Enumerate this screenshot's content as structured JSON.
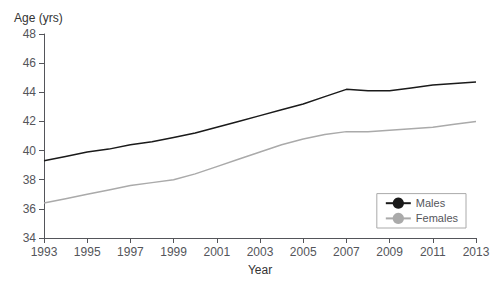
{
  "chart_data": {
    "type": "line",
    "x": [
      1993,
      1994,
      1995,
      1996,
      1997,
      1998,
      1999,
      2000,
      2001,
      2002,
      2003,
      2004,
      2005,
      2006,
      2007,
      2008,
      2009,
      2010,
      2011,
      2012,
      2013
    ],
    "series": [
      {
        "name": "Males",
        "color": "#1a1a1a",
        "values": [
          39.3,
          39.6,
          39.9,
          40.1,
          40.4,
          40.6,
          40.9,
          41.2,
          41.6,
          42.0,
          42.4,
          42.8,
          43.2,
          43.7,
          44.2,
          44.1,
          44.1,
          44.3,
          44.5,
          44.6,
          44.7
        ]
      },
      {
        "name": "Females",
        "color": "#aaaaaa",
        "values": [
          36.4,
          36.7,
          37.0,
          37.3,
          37.6,
          37.8,
          38.0,
          38.4,
          38.9,
          39.4,
          39.9,
          40.4,
          40.8,
          41.1,
          41.3,
          41.3,
          41.4,
          41.5,
          41.6,
          41.8,
          42.0
        ]
      }
    ],
    "xlabel": "Year",
    "ylabel": "Age (yrs)",
    "xlim": [
      1993,
      2013
    ],
    "xticks": [
      1993,
      1995,
      1997,
      1999,
      2001,
      2003,
      2005,
      2007,
      2009,
      2011,
      2013
    ],
    "ylim": [
      34,
      48
    ],
    "yticks": [
      34,
      36,
      38,
      40,
      42,
      44,
      46,
      48
    ],
    "grid": false,
    "legend": "lower right"
  }
}
